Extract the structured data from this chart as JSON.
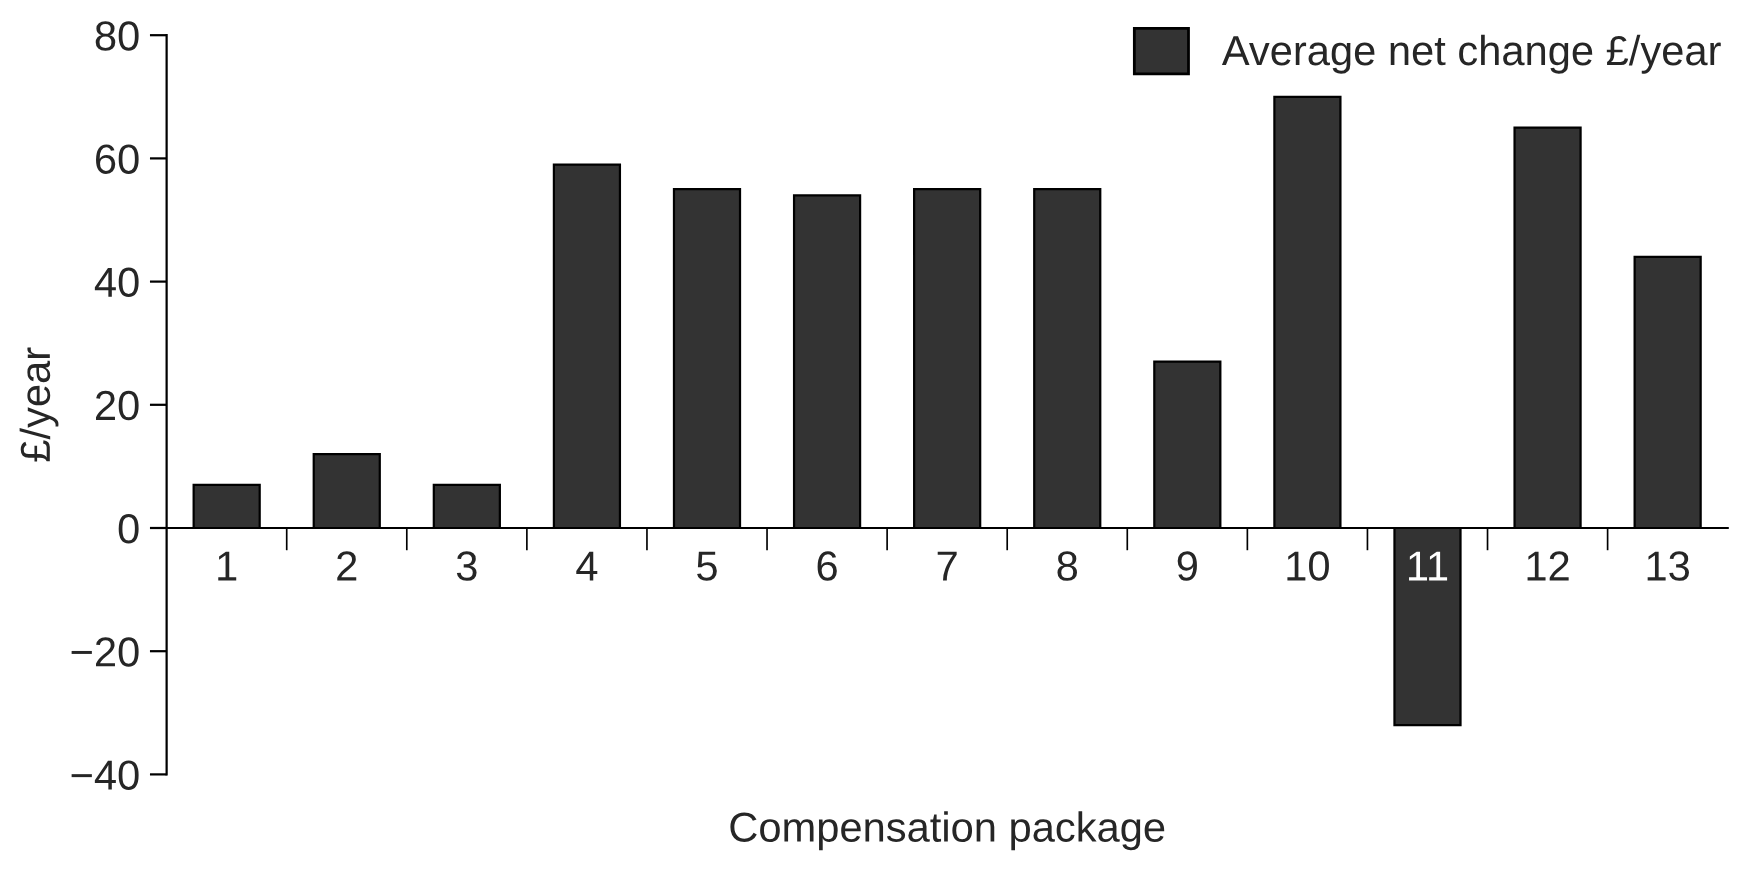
{
  "chart_data": {
    "type": "bar",
    "xlabel": "Compensation package",
    "ylabel": "£/year",
    "categories": [
      "1",
      "2",
      "3",
      "4",
      "5",
      "6",
      "7",
      "8",
      "9",
      "10",
      "11",
      "12",
      "13"
    ],
    "series": [
      {
        "name": "Average net change £/year",
        "color": "#333333",
        "values": [
          7,
          12,
          7,
          59,
          55,
          54,
          55,
          55,
          27,
          70,
          -32,
          65,
          44
        ]
      }
    ],
    "ylim": [
      -40,
      80
    ],
    "yticks": [
      {
        "value": -40,
        "label": "−40"
      },
      {
        "value": -20,
        "label": "−20"
      },
      0,
      20,
      40,
      60,
      80
    ],
    "grid": false,
    "legend": "top right"
  }
}
